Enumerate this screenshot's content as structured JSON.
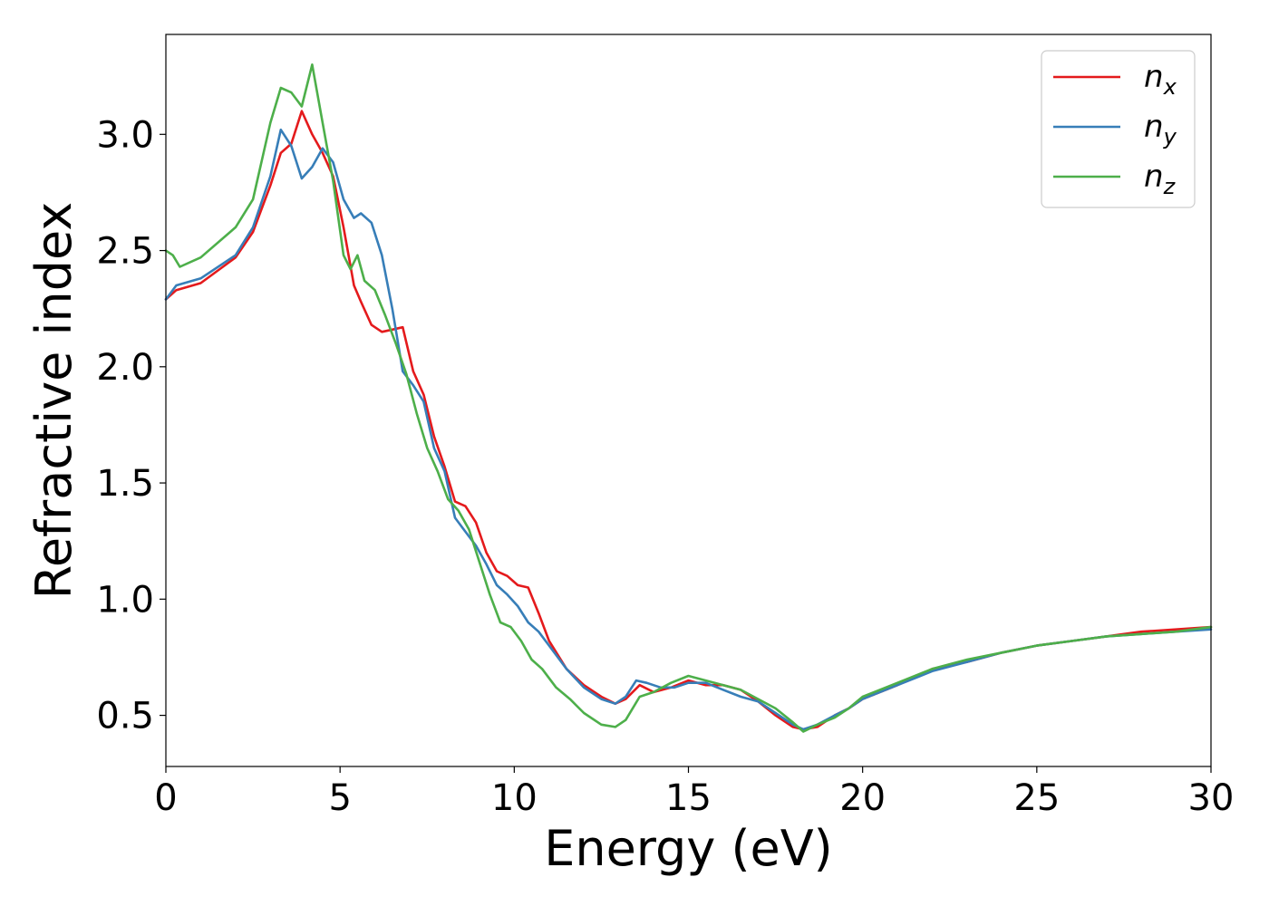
{
  "chart_data": {
    "type": "line",
    "title": "",
    "xlabel": "Energy (eV)",
    "ylabel": "Refractive index",
    "xlim": [
      0,
      30
    ],
    "ylim": [
      0.28,
      3.43
    ],
    "xticks": [
      "0",
      "5",
      "10",
      "15",
      "20",
      "25",
      "30"
    ],
    "yticks": [
      "0.5",
      "1.0",
      "1.5",
      "2.0",
      "2.5",
      "3.0"
    ],
    "grid": false,
    "legend_position": "top-right",
    "series": [
      {
        "name": "n",
        "subscript": "x",
        "color": "#e41a1c",
        "x": [
          0,
          0.3,
          1,
          2,
          2.5,
          3,
          3.3,
          3.6,
          3.9,
          4.2,
          4.5,
          4.8,
          5.1,
          5.4,
          5.6,
          5.9,
          6.2,
          6.5,
          6.8,
          7.1,
          7.4,
          7.7,
          8.0,
          8.3,
          8.6,
          8.9,
          9.2,
          9.5,
          9.8,
          10.1,
          10.4,
          10.7,
          11.0,
          11.5,
          12.0,
          12.5,
          12.9,
          13.2,
          13.6,
          14.0,
          14.5,
          15.0,
          15.5,
          16.0,
          16.5,
          17.0,
          17.5,
          18.0,
          18.3,
          18.7,
          19.2,
          19.6,
          20.0,
          21,
          22,
          23,
          24,
          25,
          26,
          27,
          28,
          29,
          30
        ],
        "y": [
          2.29,
          2.33,
          2.36,
          2.47,
          2.58,
          2.78,
          2.92,
          2.96,
          3.1,
          3.0,
          2.92,
          2.82,
          2.6,
          2.35,
          2.28,
          2.18,
          2.15,
          2.16,
          2.17,
          1.98,
          1.88,
          1.7,
          1.57,
          1.42,
          1.4,
          1.33,
          1.2,
          1.12,
          1.1,
          1.06,
          1.05,
          0.94,
          0.82,
          0.7,
          0.63,
          0.58,
          0.55,
          0.57,
          0.63,
          0.6,
          0.62,
          0.65,
          0.63,
          0.63,
          0.61,
          0.56,
          0.5,
          0.45,
          0.44,
          0.45,
          0.5,
          0.53,
          0.57,
          0.63,
          0.7,
          0.73,
          0.77,
          0.8,
          0.82,
          0.84,
          0.86,
          0.87,
          0.88
        ]
      },
      {
        "name": "n",
        "subscript": "y",
        "color": "#377eb8",
        "x": [
          0,
          0.3,
          1,
          2,
          2.5,
          3,
          3.3,
          3.6,
          3.9,
          4.2,
          4.5,
          4.8,
          5.1,
          5.4,
          5.6,
          5.9,
          6.2,
          6.5,
          6.8,
          7.1,
          7.4,
          7.7,
          8.0,
          8.3,
          8.6,
          8.9,
          9.2,
          9.5,
          9.8,
          10.1,
          10.4,
          10.7,
          11.0,
          11.5,
          12.0,
          12.5,
          12.9,
          13.2,
          13.5,
          13.8,
          14.2,
          14.6,
          15.0,
          15.5,
          16.0,
          16.5,
          17.0,
          17.5,
          18.0,
          18.3,
          18.7,
          19.2,
          19.6,
          20.0,
          21,
          22,
          23,
          24,
          25,
          26,
          27,
          28,
          29,
          30
        ],
        "y": [
          2.29,
          2.35,
          2.38,
          2.48,
          2.6,
          2.82,
          3.02,
          2.95,
          2.81,
          2.86,
          2.94,
          2.88,
          2.72,
          2.64,
          2.66,
          2.62,
          2.48,
          2.25,
          1.98,
          1.92,
          1.85,
          1.65,
          1.55,
          1.35,
          1.29,
          1.23,
          1.15,
          1.06,
          1.02,
          0.97,
          0.9,
          0.86,
          0.8,
          0.7,
          0.62,
          0.57,
          0.55,
          0.58,
          0.65,
          0.64,
          0.62,
          0.62,
          0.64,
          0.64,
          0.61,
          0.58,
          0.56,
          0.51,
          0.46,
          0.44,
          0.46,
          0.5,
          0.53,
          0.57,
          0.63,
          0.69,
          0.73,
          0.77,
          0.8,
          0.82,
          0.84,
          0.85,
          0.86,
          0.87
        ]
      },
      {
        "name": "n",
        "subscript": "z",
        "color": "#4daf4a",
        "x": [
          0,
          0.2,
          0.4,
          1,
          2,
          2.5,
          3,
          3.3,
          3.6,
          3.9,
          4.2,
          4.5,
          4.8,
          5.1,
          5.3,
          5.5,
          5.7,
          6.0,
          6.3,
          6.6,
          6.9,
          7.2,
          7.5,
          7.8,
          8.1,
          8.4,
          8.7,
          9.0,
          9.3,
          9.6,
          9.9,
          10.2,
          10.5,
          10.8,
          11.2,
          11.6,
          12.0,
          12.5,
          12.9,
          13.2,
          13.6,
          14.0,
          14.5,
          15.0,
          15.5,
          16.0,
          16.5,
          17.0,
          17.5,
          18.0,
          18.3,
          18.7,
          19.2,
          19.6,
          20.0,
          21,
          22,
          23,
          24,
          25,
          26,
          27,
          28,
          29,
          30
        ],
        "y": [
          2.5,
          2.48,
          2.43,
          2.47,
          2.6,
          2.72,
          3.05,
          3.2,
          3.18,
          3.12,
          3.3,
          3.05,
          2.8,
          2.48,
          2.42,
          2.48,
          2.37,
          2.33,
          2.22,
          2.1,
          1.97,
          1.8,
          1.65,
          1.55,
          1.43,
          1.38,
          1.3,
          1.16,
          1.02,
          0.9,
          0.88,
          0.82,
          0.74,
          0.7,
          0.62,
          0.57,
          0.51,
          0.46,
          0.45,
          0.48,
          0.58,
          0.6,
          0.64,
          0.67,
          0.65,
          0.63,
          0.61,
          0.57,
          0.53,
          0.47,
          0.43,
          0.46,
          0.49,
          0.53,
          0.58,
          0.64,
          0.7,
          0.74,
          0.77,
          0.8,
          0.82,
          0.84,
          0.85,
          0.86,
          0.88
        ]
      }
    ]
  }
}
